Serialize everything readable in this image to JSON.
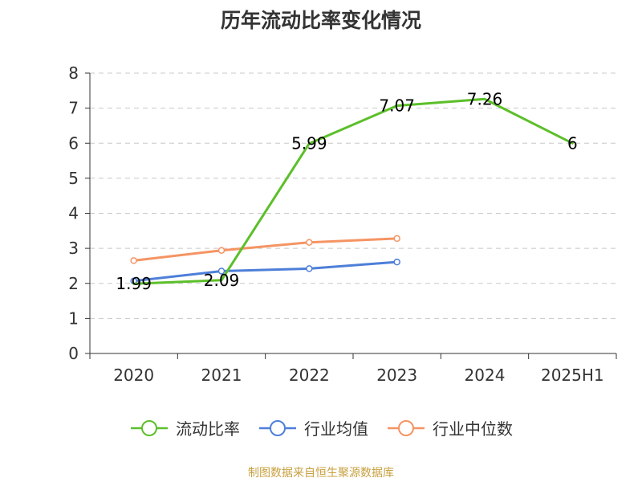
{
  "title": "历年流动比率变化情况",
  "source": "制图数据来自恒生聚源数据库",
  "legend": [
    {
      "name": "流动比率",
      "color": "#5cbf2a"
    },
    {
      "name": "行业均值",
      "color": "#4e7fd8"
    },
    {
      "name": "行业中位数",
      "color": "#f59463"
    }
  ],
  "chart_data": {
    "type": "line",
    "title": "历年流动比率变化情况",
    "xlabel": "",
    "ylabel": "",
    "categories": [
      "2020",
      "2021",
      "2022",
      "2023",
      "2024",
      "2025H1"
    ],
    "ylim": [
      0,
      8
    ],
    "yticks": [
      0,
      1,
      2,
      3,
      4,
      5,
      6,
      7,
      8
    ],
    "grid": true,
    "legend_position": "bottom",
    "series": [
      {
        "name": "流动比率",
        "color": "#5cbf2a",
        "values": [
          1.99,
          2.09,
          5.99,
          7.07,
          7.26,
          6
        ],
        "labels": [
          "1.99",
          "2.09",
          "5.99",
          "7.07",
          "7.26",
          "6"
        ],
        "markers": false
      },
      {
        "name": "行业均值",
        "color": "#4e7fd8",
        "values": [
          2.07,
          2.35,
          2.42,
          2.61,
          null,
          null
        ],
        "markers": true
      },
      {
        "name": "行业中位数",
        "color": "#f59463",
        "values": [
          2.65,
          2.94,
          3.17,
          3.28,
          null,
          null
        ],
        "markers": true
      }
    ]
  }
}
